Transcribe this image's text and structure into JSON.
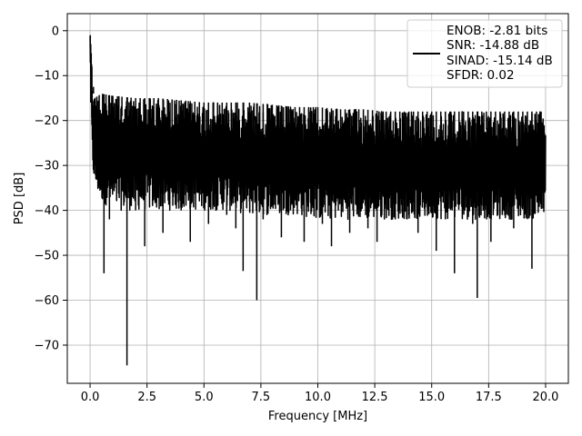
{
  "chart_data": {
    "type": "line",
    "title": "",
    "xlabel": "Frequency [MHz]",
    "ylabel": "PSD [dB]",
    "xlim": [
      -1.0,
      21.0
    ],
    "ylim": [
      -78.5,
      3.8
    ],
    "xticks": [
      0.0,
      2.5,
      5.0,
      7.5,
      10.0,
      12.5,
      15.0,
      17.5,
      20.0
    ],
    "xtick_labels": [
      "0.0",
      "2.5",
      "5.0",
      "7.5",
      "10.0",
      "12.5",
      "15.0",
      "17.5",
      "20.0"
    ],
    "yticks": [
      0,
      -10,
      -20,
      -30,
      -40,
      -50,
      -60,
      -70
    ],
    "ytick_labels": [
      "0",
      "−10",
      "−20",
      "−30",
      "−40",
      "−50",
      "−60",
      "−70"
    ],
    "grid": true,
    "line_color": "#000000",
    "legend": {
      "placement": "upper right",
      "entries": [
        "ENOB: -2.81 bits",
        "SNR: -14.88 dB",
        "SINAD: -15.14 dB",
        "SFDR: 0.02"
      ]
    },
    "series": [
      {
        "name": "ENOB: -2.81 bits\nSNR: -14.88 dB\nSINAD: -15.14 dB\nSFDR: 0.02",
        "envelope": {
          "x": [
            0,
            0.1,
            0.2,
            0.5,
            1,
            2,
            3,
            4,
            5,
            6,
            7,
            8,
            9,
            10,
            11,
            12,
            13,
            14,
            15,
            16,
            17,
            18,
            19,
            20
          ],
          "upper": [
            0,
            -10,
            -15,
            -14,
            -14.5,
            -15,
            -15,
            -15.5,
            -16,
            -16,
            -16,
            -16.5,
            -17,
            -17,
            -17.5,
            -17.5,
            -18,
            -18,
            -18,
            -18,
            -18,
            -18,
            -18,
            -18
          ],
          "lower": [
            -5,
            -30,
            -35,
            -38,
            -40,
            -40,
            -40,
            -40,
            -40,
            -40,
            -41,
            -41,
            -41,
            -42,
            -42,
            -42,
            -42,
            -42,
            -42,
            -42,
            -42,
            -42,
            -42,
            -42
          ]
        },
        "x": [
          0,
          0.01,
          0.03,
          0.05,
          0.08,
          0.15,
          0.22,
          0.3,
          0.4,
          0.55,
          0.61,
          0.7,
          0.85,
          1.0,
          1.2,
          1.4,
          1.62,
          1.64,
          1.8,
          2.0,
          2.2,
          2.4,
          2.6,
          2.8,
          3.0,
          3.2,
          3.4,
          3.6,
          3.8,
          4.0,
          4.2,
          4.4,
          4.6,
          4.8,
          5.0,
          5.2,
          5.4,
          5.6,
          5.8,
          6.0,
          6.2,
          6.4,
          6.72,
          6.74,
          7.0,
          7.2,
          7.32,
          7.34,
          7.6,
          7.8,
          8.0,
          8.2,
          8.4,
          8.6,
          8.8,
          9.0,
          9.2,
          9.4,
          9.6,
          9.8,
          10.0,
          10.2,
          10.4,
          10.6,
          10.8,
          11.0,
          11.2,
          11.4,
          11.6,
          11.8,
          12.0,
          12.2,
          12.4,
          12.6,
          12.8,
          13.0,
          13.2,
          13.4,
          13.6,
          13.8,
          14.0,
          14.2,
          14.4,
          14.6,
          14.8,
          15.0,
          15.2,
          15.4,
          15.6,
          15.8,
          16.0,
          16.2,
          16.4,
          16.6,
          16.8,
          17.0,
          17.02,
          17.2,
          17.4,
          17.6,
          17.8,
          18.0,
          18.2,
          18.4,
          18.6,
          18.8,
          19.0,
          19.2,
          19.4,
          19.6,
          19.8,
          20.0
        ],
        "y": [
          0,
          -4,
          -16,
          -8,
          -21,
          -14,
          -30,
          -18,
          -35,
          -24,
          -54,
          -20,
          -42,
          -23,
          -33,
          -19,
          -74.5,
          -30,
          -26,
          -40,
          -22,
          -48,
          -28,
          -37,
          -20,
          -45,
          -29,
          -36,
          -25,
          -40,
          -21,
          -47,
          -30,
          -38,
          -18,
          -43,
          -25,
          -35,
          -28,
          -41,
          -22,
          -44,
          -53.5,
          -27,
          -38,
          -20,
          -60,
          -31,
          -42,
          -24,
          -37,
          -22,
          -46,
          -29,
          -40,
          -25,
          -36,
          -47,
          -24,
          -39,
          -28,
          -43,
          -22,
          -48,
          -31,
          -37,
          -26,
          -45,
          -25,
          -40,
          -33,
          -44,
          -24,
          -47,
          -30,
          -38,
          -23,
          -42,
          -28,
          -36,
          -41,
          -26,
          -45,
          -30,
          -38,
          -24,
          -49,
          -27,
          -42,
          -33,
          -54,
          -28,
          -39,
          -25,
          -43,
          -59.5,
          -31,
          -37,
          -22,
          -47,
          -29,
          -41,
          -25,
          -36,
          -44,
          -30,
          -39,
          -24,
          -53,
          -29,
          -38,
          -18
        ]
      }
    ]
  }
}
